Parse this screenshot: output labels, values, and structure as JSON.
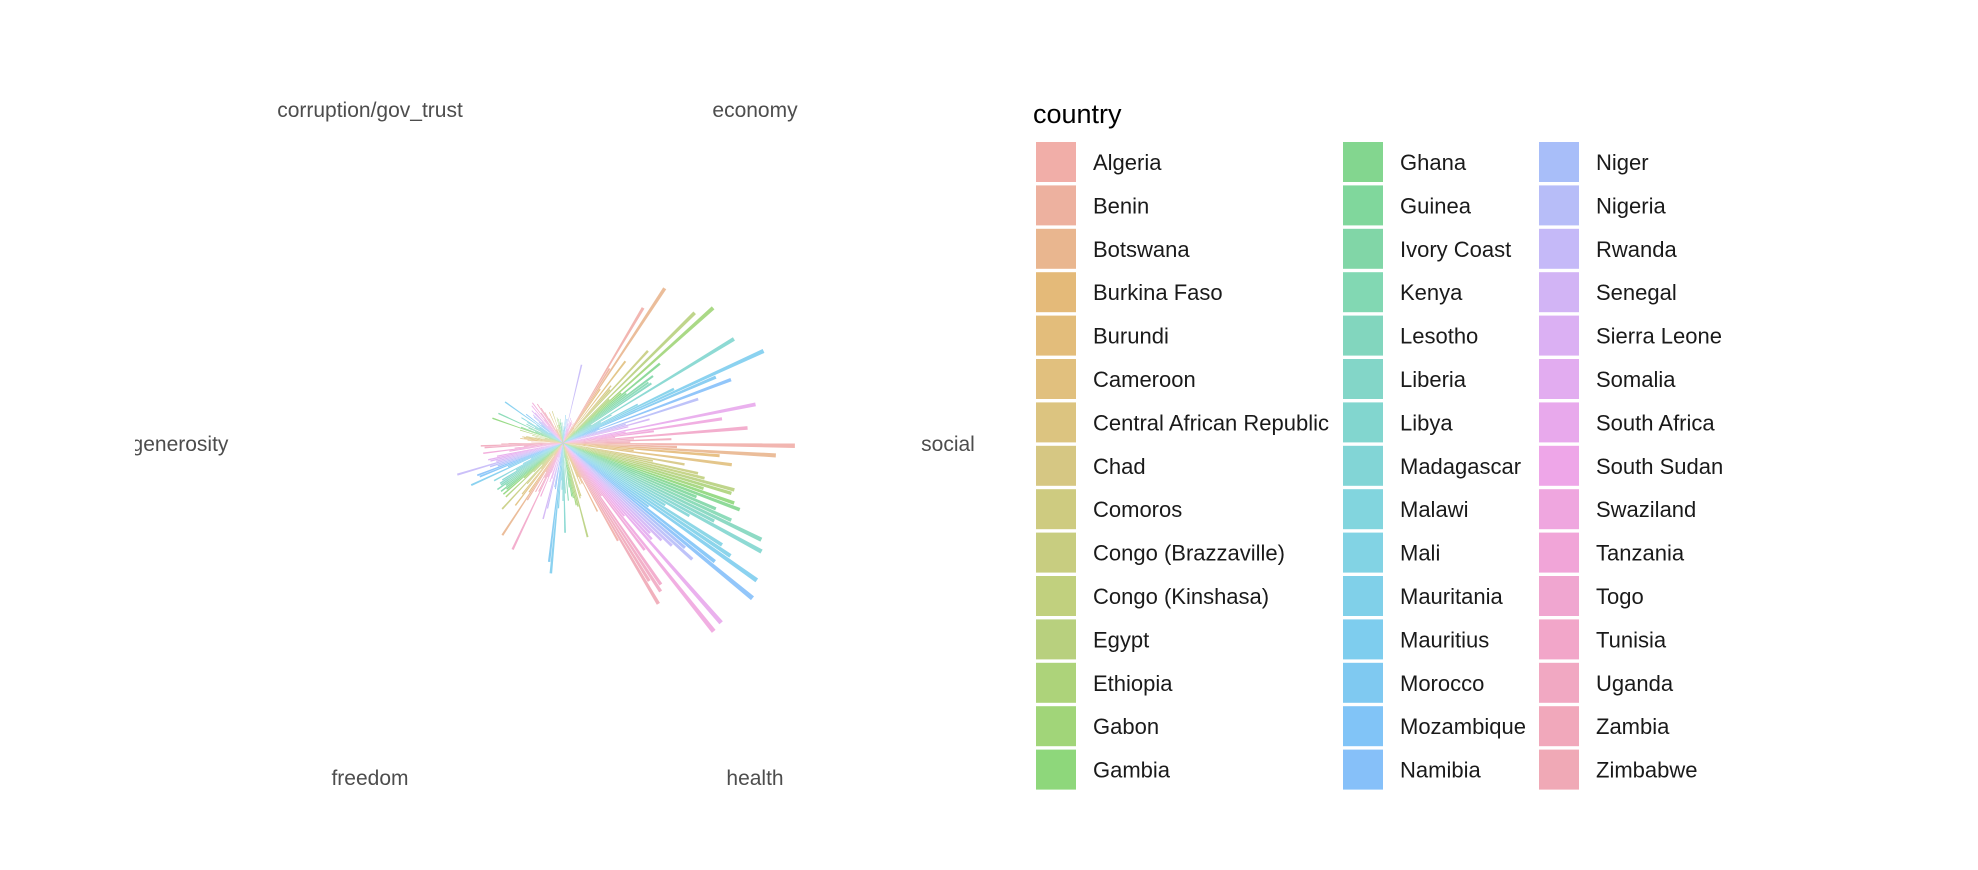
{
  "chart_data": {
    "type": "bar",
    "coordinate_system": "polar",
    "axes": [
      "economy",
      "social",
      "health",
      "freedom",
      "generosity",
      "corruption/gov_trust"
    ],
    "grid": false,
    "legend": {
      "title": "country",
      "placement": "right",
      "columns": 3
    },
    "categories": [
      "Algeria",
      "Benin",
      "Botswana",
      "Burkina Faso",
      "Burundi",
      "Cameroon",
      "Central African Republic",
      "Chad",
      "Comoros",
      "Congo (Brazzaville)",
      "Congo (Kinshasa)",
      "Egypt",
      "Ethiopia",
      "Gabon",
      "Gambia",
      "Ghana",
      "Guinea",
      "Ivory Coast",
      "Kenya",
      "Lesotho",
      "Liberia",
      "Libya",
      "Madagascar",
      "Malawi",
      "Mali",
      "Mauritania",
      "Mauritius",
      "Morocco",
      "Mozambique",
      "Namibia",
      "Niger",
      "Nigeria",
      "Rwanda",
      "Senegal",
      "Sierra Leone",
      "Somalia",
      "South Africa",
      "South Sudan",
      "Swaziland",
      "Tanzania",
      "Togo",
      "Tunisia",
      "Uganda",
      "Zambia",
      "Zimbabwe"
    ],
    "colors": [
      "#F1AEA8",
      "#EDB19F",
      "#E9B68F",
      "#E4BA79",
      "#E3BD7B",
      "#E1C07E",
      "#DCC480",
      "#D6C783",
      "#CECB80",
      "#C8CD80",
      "#C1D07E",
      "#B8D07E",
      "#ADD37A",
      "#A1D579",
      "#8ED77B",
      "#83D68F",
      "#80D79C",
      "#81D6A7",
      "#82D8B3",
      "#82D6BE",
      "#83D6C8",
      "#82D6CF",
      "#82D5D6",
      "#82D5DE",
      "#82D3E4",
      "#80D0E9",
      "#7ECDEE",
      "#7FC9F1",
      "#81C4F7",
      "#86C0F9",
      "#A8BEF9",
      "#B7BDF8",
      "#C5B9F8",
      "#D2B4F5",
      "#DBB0F3",
      "#E2ACF0",
      "#E8A9EC",
      "#EEA6E8",
      "#EFA6DF",
      "#F1A5D8",
      "#F0A6D0",
      "#F2A6C9",
      "#F1A8C2",
      "#F1A8BB",
      "#F0A9B6"
    ],
    "series": [
      {
        "name": "economy",
        "values": [
          0.84,
          0.47,
          0.99,
          0.35,
          0.1,
          0.55,
          0.03,
          0.4,
          0.38,
          0.67,
          0.09,
          0.99,
          0.34,
          1.08,
          0.41,
          0.67,
          0.43,
          0.6,
          0.56,
          0.57,
          0.18,
          1.07,
          0.3,
          0.23,
          0.45,
          0.66,
          1.18,
          0.89,
          0.21,
          0.96,
          0.19,
          0.76,
          0.35,
          0.48,
          0.36,
          0.07,
          1.05,
          0.34,
          0.86,
          0.49,
          0.28,
          0.99,
          0.38,
          0.58,
          0.36
        ]
      },
      {
        "name": "social",
        "values": [
          1.24,
          0.61,
          1.14,
          0.84,
          0.38,
          0.91,
          0.0,
          0.66,
          0.49,
          0.74,
          0.78,
          0.95,
          0.94,
          0.79,
          0.97,
          1.01,
          0.77,
          0.89,
          0.99,
          1.18,
          0.91,
          1.21,
          0.78,
          0.64,
          1.01,
          1.08,
          1.27,
          0.57,
          1.03,
          1.31,
          0.86,
          0.93,
          0.8,
          0.74,
          0.67,
          0.7,
          1.28,
          0.51,
          1.29,
          0.72,
          0.35,
          0.92,
          0.95,
          0.87,
          1.0
        ]
      },
      {
        "name": "health",
        "values": [
          0.6,
          0.21,
          0.41,
          0.24,
          0.2,
          0.24,
          0.06,
          0.1,
          0.3,
          0.31,
          0.09,
          0.52,
          0.35,
          0.34,
          0.3,
          0.29,
          0.24,
          0.08,
          0.31,
          0.0,
          0.27,
          0.48,
          0.31,
          0.25,
          0.2,
          0.35,
          0.7,
          0.64,
          0.12,
          0.25,
          0.24,
          0.06,
          0.36,
          0.42,
          0.08,
          0.2,
          0.22,
          0.08,
          0.17,
          0.31,
          0.2,
          0.63,
          0.29,
          0.21,
          0.3
        ]
      },
      {
        "name": "freedom",
        "values": [
          0.18,
          0.36,
          0.59,
          0.32,
          0.08,
          0.42,
          0.35,
          0.18,
          0.29,
          0.48,
          0.16,
          0.22,
          0.42,
          0.28,
          0.42,
          0.39,
          0.42,
          0.38,
          0.43,
          0.4,
          0.4,
          0.38,
          0.29,
          0.42,
          0.24,
          0.19,
          0.54,
          0.32,
          0.48,
          0.49,
          0.37,
          0.41,
          0.59,
          0.37,
          0.4,
          0.41,
          0.36,
          0.06,
          0.29,
          0.43,
          0.26,
          0.21,
          0.42,
          0.44,
          0.33
        ]
      },
      {
        "name": "generosity",
        "values": [
          0.07,
          0.17,
          0.05,
          0.19,
          0.23,
          0.21,
          0.22,
          0.2,
          0.15,
          0.1,
          0.17,
          0.1,
          0.24,
          0.08,
          0.4,
          0.24,
          0.16,
          0.2,
          0.38,
          0.13,
          0.22,
          0.17,
          0.22,
          0.26,
          0.15,
          0.17,
          0.38,
          0.09,
          0.25,
          0.15,
          0.17,
          0.21,
          0.22,
          0.16,
          0.24,
          0.22,
          0.12,
          0.26,
          0.16,
          0.27,
          0.2,
          0.06,
          0.25,
          0.22,
          0.19
        ]
      },
      {
        "name": "corruption/gov_trust",
        "values": [
          0.15,
          0.08,
          0.08,
          0.1,
          0.18,
          0.05,
          0.08,
          0.05,
          0.18,
          0.1,
          0.07,
          0.1,
          0.14,
          0.1,
          0.13,
          0.03,
          0.11,
          0.13,
          0.09,
          0.11,
          0.04,
          0.11,
          0.05,
          0.07,
          0.09,
          0.08,
          0.15,
          0.09,
          0.13,
          0.05,
          0.13,
          0.05,
          0.43,
          0.11,
          0.08,
          0.14,
          0.08,
          0.12,
          0.13,
          0.11,
          0.12,
          0.06,
          0.07,
          0.12,
          0.1
        ]
      }
    ]
  }
}
